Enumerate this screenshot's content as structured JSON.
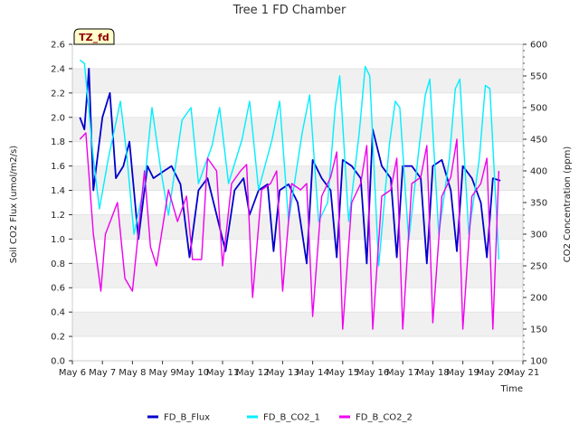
{
  "chart_data": {
    "type": "line",
    "title": "Tree 1 FD Chamber",
    "badge": "TZ_fd",
    "xlabel": "Time",
    "ylabel_left": "Soil CO2 Flux (umol/m2/s)",
    "ylabel_right": "CO2 Concentration (ppm)",
    "x_ticks": [
      "May 6",
      "May 7",
      "May 8",
      "May 9",
      "May 10",
      "May 11",
      "May 12",
      "May 13",
      "May 14",
      "May 15",
      "May 16",
      "May 17",
      "May 18",
      "May 19",
      "May 20",
      "May 21"
    ],
    "x_range_days": [
      6,
      21
    ],
    "ylim_left": [
      0.0,
      2.6
    ],
    "yticks_left": [
      "0.0",
      "0.2",
      "0.4",
      "0.6",
      "0.8",
      "1.0",
      "1.2",
      "1.4",
      "1.6",
      "1.8",
      "2.0",
      "2.2",
      "2.4",
      "2.6"
    ],
    "ylim_right": [
      100,
      600
    ],
    "yticks_right": [
      "100",
      "150",
      "200",
      "250",
      "300",
      "350",
      "400",
      "450",
      "500",
      "550",
      "600"
    ],
    "grid": "horizontal bands",
    "legend_position": "bottom",
    "series": [
      {
        "name": "FD_B_Flux",
        "axis": "left",
        "color": "#0000cc",
        "x": [
          6.25,
          6.4,
          6.55,
          6.7,
          7.0,
          7.25,
          7.45,
          7.7,
          7.9,
          8.2,
          8.5,
          8.7,
          9.0,
          9.3,
          9.6,
          9.9,
          10.2,
          10.5,
          10.8,
          11.1,
          11.4,
          11.7,
          11.9,
          12.2,
          12.5,
          12.7,
          12.9,
          13.2,
          13.5,
          13.8,
          14.0,
          14.3,
          14.6,
          14.8,
          15.0,
          15.3,
          15.6,
          15.8,
          16.0,
          16.3,
          16.6,
          16.8,
          17.0,
          17.3,
          17.6,
          17.8,
          18.0,
          18.3,
          18.6,
          18.8,
          19.0,
          19.3,
          19.6,
          19.8,
          20.0,
          20.25
        ],
        "y": [
          2.0,
          1.9,
          2.4,
          1.4,
          2.0,
          2.2,
          1.5,
          1.6,
          1.8,
          1.0,
          1.6,
          1.5,
          1.55,
          1.6,
          1.45,
          0.85,
          1.4,
          1.5,
          1.2,
          0.9,
          1.4,
          1.5,
          1.2,
          1.4,
          1.45,
          0.9,
          1.4,
          1.45,
          1.3,
          0.8,
          1.65,
          1.5,
          1.4,
          0.85,
          1.65,
          1.6,
          1.5,
          0.8,
          1.9,
          1.6,
          1.5,
          0.85,
          1.6,
          1.6,
          1.5,
          0.8,
          1.6,
          1.65,
          1.4,
          0.9,
          1.6,
          1.5,
          1.3,
          0.85,
          1.5,
          1.48
        ]
      },
      {
        "name": "FD_B_CO2_1",
        "axis": "right",
        "color": "#00eeff",
        "x": [
          6.25,
          6.4,
          6.7,
          6.9,
          7.2,
          7.6,
          7.8,
          8.05,
          8.4,
          8.65,
          8.95,
          9.2,
          9.65,
          9.95,
          10.2,
          10.65,
          10.9,
          11.2,
          11.65,
          11.9,
          12.2,
          12.65,
          12.9,
          13.2,
          13.65,
          13.9,
          14.2,
          14.5,
          14.75,
          14.9,
          15.2,
          15.55,
          15.75,
          15.9,
          16.2,
          16.55,
          16.75,
          16.9,
          17.2,
          17.55,
          17.75,
          17.9,
          18.2,
          18.55,
          18.75,
          18.9,
          19.2,
          19.55,
          19.75,
          19.9,
          20.2
        ],
        "y": [
          575,
          570,
          420,
          340,
          420,
          510,
          430,
          300,
          380,
          500,
          400,
          330,
          480,
          500,
          380,
          440,
          500,
          380,
          450,
          510,
          370,
          450,
          510,
          320,
          460,
          520,
          320,
          350,
          500,
          550,
          320,
          460,
          565,
          550,
          250,
          440,
          510,
          500,
          290,
          440,
          520,
          545,
          300,
          420,
          530,
          545,
          300,
          420,
          535,
          530,
          260
        ]
      },
      {
        "name": "FD_B_CO2_2",
        "axis": "right",
        "color": "#ee00ee",
        "x": [
          6.25,
          6.45,
          6.7,
          6.95,
          7.1,
          7.5,
          7.75,
          8.0,
          8.4,
          8.6,
          8.8,
          9.2,
          9.5,
          9.8,
          10.0,
          10.3,
          10.5,
          10.8,
          11.0,
          11.3,
          11.6,
          11.8,
          12.0,
          12.3,
          12.6,
          12.8,
          13.0,
          13.3,
          13.6,
          13.8,
          14.0,
          14.3,
          14.6,
          14.8,
          15.0,
          15.3,
          15.6,
          15.8,
          16.0,
          16.3,
          16.6,
          16.8,
          17.0,
          17.3,
          17.6,
          17.8,
          18.0,
          18.3,
          18.6,
          18.8,
          19.0,
          19.3,
          19.6,
          19.8,
          20.0,
          20.2
        ],
        "y": [
          450,
          460,
          300,
          210,
          300,
          350,
          230,
          210,
          400,
          280,
          250,
          370,
          320,
          360,
          260,
          260,
          420,
          400,
          250,
          380,
          400,
          410,
          200,
          370,
          380,
          400,
          210,
          380,
          370,
          380,
          170,
          360,
          390,
          430,
          150,
          350,
          380,
          440,
          150,
          360,
          370,
          420,
          150,
          380,
          390,
          440,
          160,
          360,
          390,
          450,
          150,
          360,
          380,
          420,
          150,
          400
        ]
      }
    ]
  }
}
